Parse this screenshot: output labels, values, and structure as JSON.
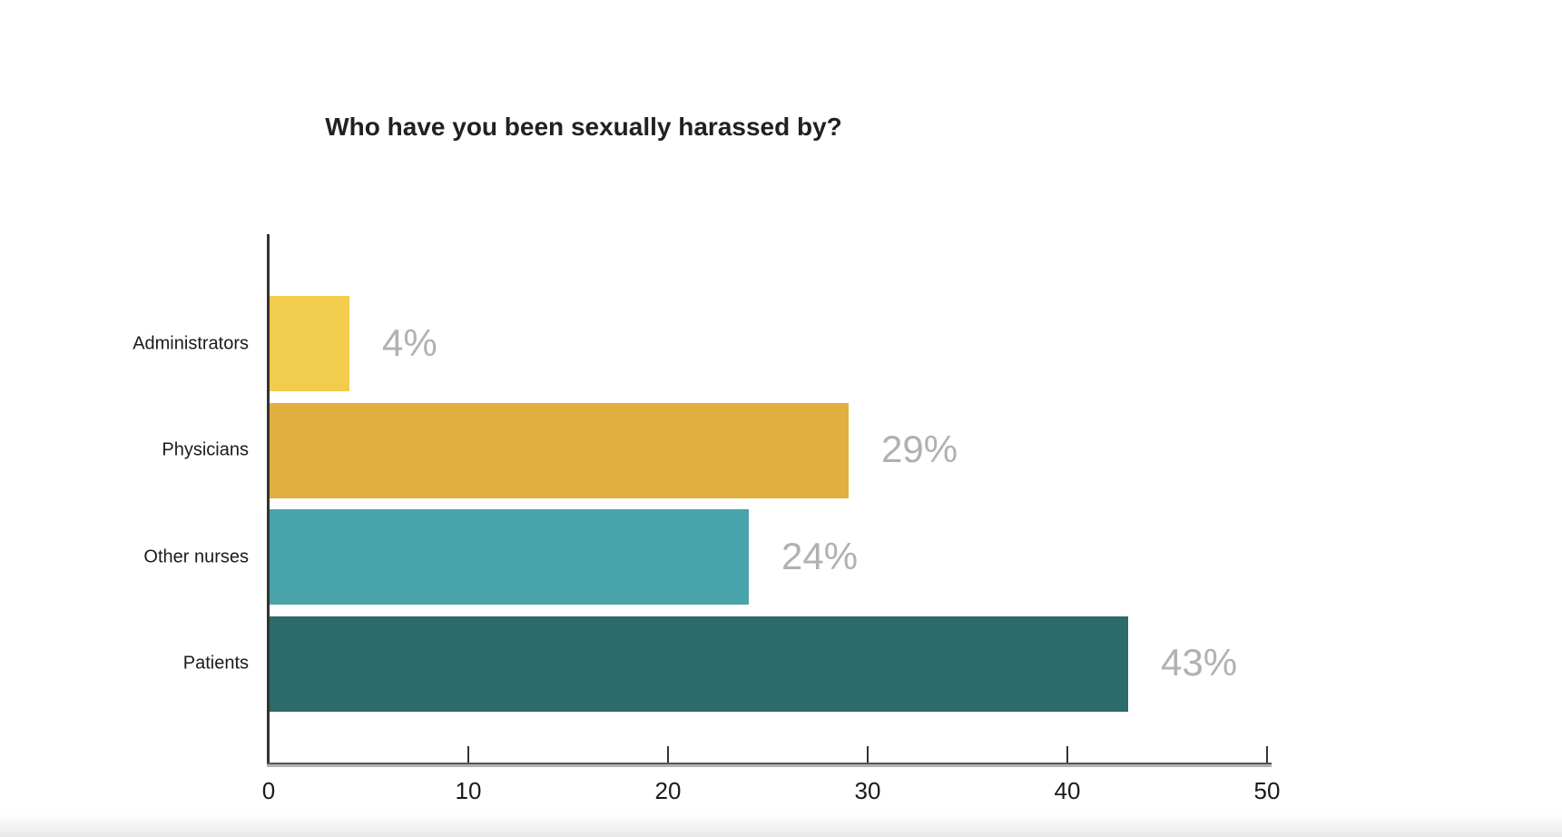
{
  "chart_data": {
    "type": "bar",
    "orientation": "horizontal",
    "title": "Who have you been sexually harassed by?",
    "categories": [
      "Administrators",
      "Physicians",
      "Other nurses",
      "Patients"
    ],
    "values": [
      4,
      29,
      24,
      43
    ],
    "value_labels": [
      "4%",
      "29%",
      "24%",
      "43%"
    ],
    "series": [
      {
        "name": "Administrators",
        "value": 4,
        "label": "4%",
        "color": "#F2CC4D"
      },
      {
        "name": "Physicians",
        "value": 29,
        "label": "29%",
        "color": "#E1AE40"
      },
      {
        "name": "Other nurses",
        "value": 24,
        "label": "24%",
        "color": "#48A3AB"
      },
      {
        "name": "Patients",
        "value": 43,
        "label": "43%",
        "color": "#2C6A6B"
      }
    ],
    "xlabel": "",
    "ylabel": "",
    "xlim": [
      0,
      50
    ],
    "x_ticks": [
      "0",
      "10",
      "20",
      "30",
      "40",
      "50"
    ],
    "grid": false,
    "legend": false,
    "colors": {
      "background": "#ffffff",
      "title_text": "#212121",
      "category_text": "#1a1a1a",
      "tick_text": "#1a1a1a",
      "value_label_text": "#afb1b3",
      "axis_line": "#333333"
    }
  }
}
